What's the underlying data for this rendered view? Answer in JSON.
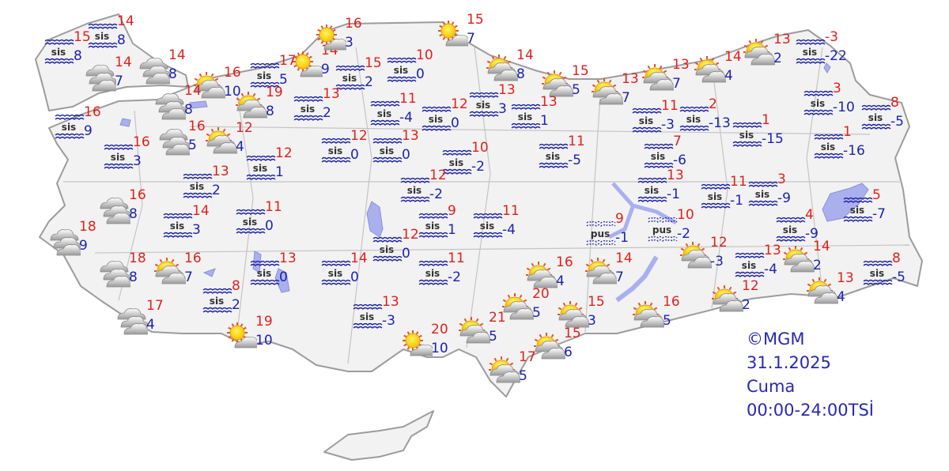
{
  "legend": {
    "copyright": "©MGM",
    "date": "31.1.2025",
    "day": "Cuma",
    "period": "00:00-24:00TSİ"
  },
  "colors": {
    "max_temp": "#e0201c",
    "min_temp": "#1e22b0",
    "land": "#f2f2f2",
    "border": "#a8a8a8",
    "water": "#aab0ee"
  },
  "icon_types": {
    "sis": "fog",
    "pus": "mist",
    "partly": "partly-cloudy",
    "cloudy": "cloudy",
    "sunny": "mostly-sunny"
  },
  "stations": [
    {
      "type": "sis",
      "label": "sis",
      "max": "14",
      "min": "8"
    },
    {
      "type": "sis",
      "label": "sis",
      "max": "15",
      "min": "8"
    },
    {
      "type": "cloudy",
      "max": "14",
      "min": "8"
    },
    {
      "type": "cloudy",
      "max": "14",
      "min": "7"
    },
    {
      "type": "partly",
      "max": "16",
      "min": "10"
    },
    {
      "type": "sis",
      "label": "sis",
      "max": "17",
      "min": "5"
    },
    {
      "type": "sunny",
      "max": "14",
      "min": "9"
    },
    {
      "type": "sunny",
      "max": "16",
      "min": "3"
    },
    {
      "type": "sis",
      "label": "sis",
      "max": "15",
      "min": "2"
    },
    {
      "type": "sis",
      "label": "sis",
      "max": "10",
      "min": "0"
    },
    {
      "type": "sunny",
      "max": "15",
      "min": "7"
    },
    {
      "type": "partly",
      "max": "14",
      "min": "8"
    },
    {
      "type": "partly",
      "max": "15",
      "min": "5"
    },
    {
      "type": "partly",
      "max": "13",
      "min": "7"
    },
    {
      "type": "partly",
      "max": "13",
      "min": "7"
    },
    {
      "type": "partly",
      "max": "14",
      "min": "4"
    },
    {
      "type": "partly",
      "max": "13",
      "min": "2"
    },
    {
      "type": "sis",
      "label": "sis",
      "max": "-3",
      "min": "-22"
    },
    {
      "type": "cloudy",
      "max": "14",
      "min": "8"
    },
    {
      "type": "partly",
      "max": "19",
      "min": "8"
    },
    {
      "type": "sis",
      "label": "sis",
      "max": "13",
      "min": "2"
    },
    {
      "type": "sis",
      "label": "sis",
      "max": "16",
      "min": "9"
    },
    {
      "type": "sis",
      "label": "sis",
      "max": "11",
      "min": "-4"
    },
    {
      "type": "sis",
      "label": "sis",
      "max": "12",
      "min": "0"
    },
    {
      "type": "sis",
      "label": "sis",
      "max": "13",
      "min": "3"
    },
    {
      "type": "sis",
      "label": "sis",
      "max": "13",
      "min": "1"
    },
    {
      "type": "sis",
      "label": "sis",
      "max": "3",
      "min": "-10"
    },
    {
      "type": "sis",
      "label": "sis",
      "max": "8",
      "min": "-5"
    },
    {
      "type": "sis",
      "label": "sis",
      "max": "11",
      "min": "-3"
    },
    {
      "type": "sis",
      "label": "sis",
      "max": "2",
      "min": "-13"
    },
    {
      "type": "sis",
      "label": "sis",
      "max": "1",
      "min": "-15"
    },
    {
      "type": "sis",
      "label": "sis",
      "max": "1",
      "min": "-16"
    },
    {
      "type": "cloudy",
      "max": "16",
      "min": "5"
    },
    {
      "type": "partly",
      "max": "12",
      "min": "4"
    },
    {
      "type": "sis",
      "label": "sis",
      "max": "16",
      "min": "3"
    },
    {
      "type": "sis",
      "label": "sis",
      "max": "12",
      "min": "0"
    },
    {
      "type": "sis",
      "label": "sis",
      "max": "13",
      "min": "0"
    },
    {
      "type": "sis",
      "label": "sis",
      "max": "10",
      "min": "-2"
    },
    {
      "type": "sis",
      "label": "sis",
      "max": "11",
      "min": "-5"
    },
    {
      "type": "sis",
      "label": "sis",
      "max": "7",
      "min": "-6"
    },
    {
      "type": "sis",
      "label": "sis",
      "max": "13",
      "min": "2"
    },
    {
      "type": "sis",
      "label": "sis",
      "max": "12",
      "min": "1"
    },
    {
      "type": "sis",
      "label": "sis",
      "max": "12",
      "min": "-2"
    },
    {
      "type": "sis",
      "label": "sis",
      "max": "13",
      "min": "-1"
    },
    {
      "type": "sis",
      "label": "sis",
      "max": "11",
      "min": "-1"
    },
    {
      "type": "sis",
      "label": "sis",
      "max": "3",
      "min": "-9"
    },
    {
      "type": "sis",
      "label": "sis",
      "max": "5",
      "min": "-7"
    },
    {
      "type": "cloudy",
      "max": "16",
      "min": "8"
    },
    {
      "type": "sis",
      "label": "sis",
      "max": "14",
      "min": "3"
    },
    {
      "type": "sis",
      "label": "sis",
      "max": "11",
      "min": "0"
    },
    {
      "type": "sis",
      "label": "sis",
      "max": "9",
      "min": "1"
    },
    {
      "type": "sis",
      "label": "sis",
      "max": "11",
      "min": "-4"
    },
    {
      "type": "pus",
      "label": "pus",
      "max": "9",
      "min": "-1"
    },
    {
      "type": "pus",
      "label": "pus",
      "max": "10",
      "min": "-2"
    },
    {
      "type": "sis",
      "label": "sis",
      "max": "4",
      "min": "-9"
    },
    {
      "type": "cloudy",
      "max": "18",
      "min": "9"
    },
    {
      "type": "sis",
      "label": "sis",
      "max": "12",
      "min": "0"
    },
    {
      "type": "partly",
      "max": "12",
      "min": "-3"
    },
    {
      "type": "sis",
      "label": "sis",
      "max": "13",
      "min": "-4"
    },
    {
      "type": "partly",
      "max": "14",
      "min": "2"
    },
    {
      "type": "sis",
      "label": "sis",
      "max": "8",
      "min": "-5"
    },
    {
      "type": "cloudy",
      "max": "18",
      "min": "8"
    },
    {
      "type": "partly",
      "max": "16",
      "min": "7"
    },
    {
      "type": "sis",
      "label": "sis",
      "max": "13",
      "min": "0"
    },
    {
      "type": "sis",
      "label": "sis",
      "max": "14",
      "min": "0"
    },
    {
      "type": "sis",
      "label": "sis",
      "max": "11",
      "min": "-2"
    },
    {
      "type": "partly",
      "max": "16",
      "min": "4"
    },
    {
      "type": "partly",
      "max": "14",
      "min": "7"
    },
    {
      "type": "partly",
      "max": "13",
      "min": "4"
    },
    {
      "type": "partly",
      "max": "12",
      "min": "2"
    },
    {
      "type": "sis",
      "label": "sis",
      "max": "8",
      "min": "2"
    },
    {
      "type": "cloudy",
      "max": "17",
      "min": "4"
    },
    {
      "type": "partly",
      "max": "20",
      "min": "5"
    },
    {
      "type": "partly",
      "max": "15",
      "min": "3"
    },
    {
      "type": "partly",
      "max": "16",
      "min": "5"
    },
    {
      "type": "sis",
      "label": "sis",
      "max": "13",
      "min": "-3"
    },
    {
      "type": "sunny",
      "max": "19",
      "min": "10"
    },
    {
      "type": "sunny",
      "max": "20",
      "min": "10"
    },
    {
      "type": "partly",
      "max": "21",
      "min": "5"
    },
    {
      "type": "partly",
      "max": "15",
      "min": "6"
    },
    {
      "type": "partly",
      "max": "17",
      "min": "5"
    }
  ]
}
